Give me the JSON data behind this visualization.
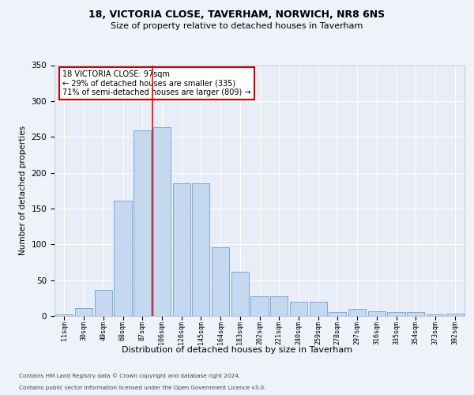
{
  "title1": "18, VICTORIA CLOSE, TAVERHAM, NORWICH, NR8 6NS",
  "title2": "Size of property relative to detached houses in Taverham",
  "xlabel": "Distribution of detached houses by size in Taverham",
  "ylabel": "Number of detached properties",
  "categories": [
    "11sqm",
    "30sqm",
    "49sqm",
    "68sqm",
    "87sqm",
    "106sqm",
    "126sqm",
    "145sqm",
    "164sqm",
    "183sqm",
    "202sqm",
    "221sqm",
    "240sqm",
    "259sqm",
    "278sqm",
    "297sqm",
    "316sqm",
    "335sqm",
    "354sqm",
    "373sqm",
    "392sqm"
  ],
  "values": [
    2,
    11,
    36,
    161,
    259,
    263,
    185,
    185,
    96,
    62,
    28,
    28,
    20,
    20,
    6,
    10,
    7,
    6,
    5,
    2,
    3
  ],
  "bar_color": "#c5d8f0",
  "bar_edge_color": "#7aadd4",
  "annotation_text_line1": "18 VICTORIA CLOSE: 97sqm",
  "annotation_text_line2": "← 29% of detached houses are smaller (335)",
  "annotation_text_line3": "71% of semi-detached houses are larger (809) →",
  "annotation_box_facecolor": "#ffffff",
  "annotation_box_edgecolor": "#cc0000",
  "red_line_bin_index": 4,
  "footer1": "Contains HM Land Registry data © Crown copyright and database right 2024.",
  "footer2": "Contains public sector information licensed under the Open Government Licence v3.0.",
  "ylim": [
    0,
    350
  ],
  "yticks": [
    0,
    50,
    100,
    150,
    200,
    250,
    300,
    350
  ],
  "bg_color": "#eef2fb",
  "plot_bg_color": "#e8edf8"
}
